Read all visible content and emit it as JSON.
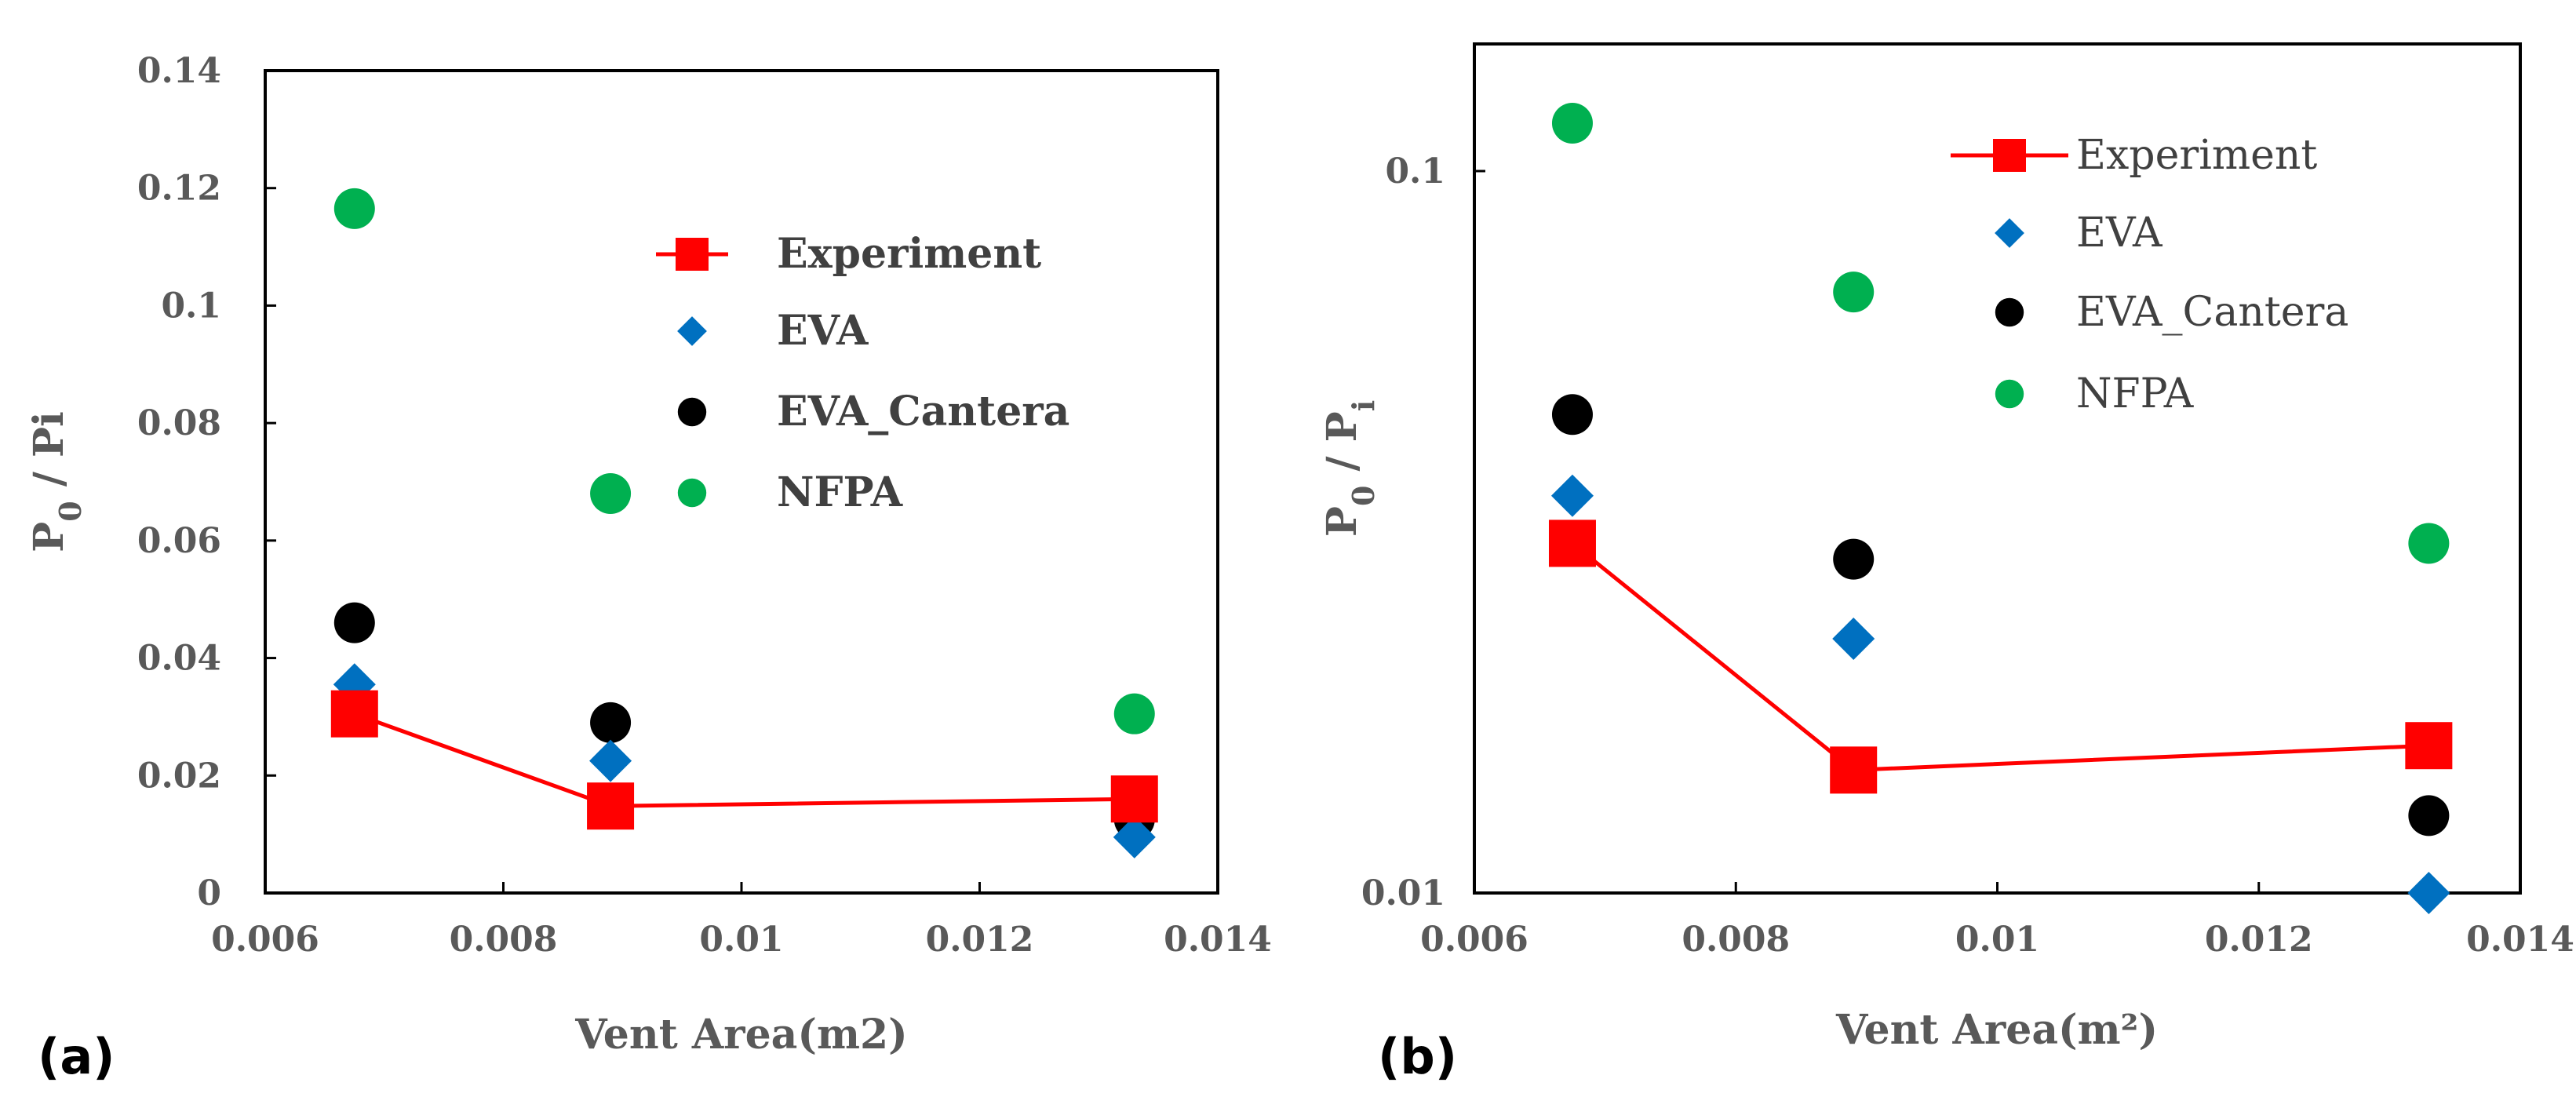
{
  "colors": {
    "experiment": "#ff0000",
    "eva": "#0070c0",
    "eva_cantera": "#000000",
    "nfpa": "#00b050",
    "axis": "#000000",
    "text": "#595959"
  },
  "chart_data": [
    {
      "type": "scatter",
      "panel_label": "(a)",
      "title": "",
      "xlabel": "Vent Area(m2)",
      "ylabel": "P0 / Pi",
      "ylabel_main": "P",
      "ylabel_sub": "0",
      "ylabel_rest": " / Pi",
      "ylabel_sub2": "",
      "xlim": [
        0.006,
        0.014
      ],
      "ylim": [
        0,
        0.14
      ],
      "yscale": "linear",
      "xticks": [
        0.006,
        0.008,
        0.01,
        0.012,
        0.014
      ],
      "xtick_labels": [
        "0.006",
        "0.008",
        "0.01",
        "0.012",
        "0.014"
      ],
      "yticks": [
        0,
        0.02,
        0.04,
        0.06,
        0.08,
        0.1,
        0.12,
        0.14
      ],
      "ytick_labels": [
        "0",
        "0.02",
        "0.04",
        "0.06",
        "0.08",
        "0.1",
        "0.12",
        "0.14"
      ],
      "grid": false,
      "legend_position": "upper-right",
      "series": [
        {
          "name": "Experiment",
          "key": "experiment",
          "marker": "square",
          "line": true,
          "x": [
            0.00675,
            0.0089,
            0.0133
          ],
          "y": [
            0.0305,
            0.0148,
            0.016
          ]
        },
        {
          "name": "EVA",
          "key": "eva",
          "marker": "diamond",
          "line": false,
          "x": [
            0.00675,
            0.0089,
            0.0133
          ],
          "y": [
            0.0355,
            0.0225,
            0.0095
          ]
        },
        {
          "name": "EVA_Cantera",
          "key": "eva_cantera",
          "marker": "circle",
          "line": false,
          "x": [
            0.00675,
            0.0089,
            0.0133
          ],
          "y": [
            0.046,
            0.029,
            0.0125
          ]
        },
        {
          "name": "NFPA",
          "key": "nfpa",
          "marker": "circle",
          "line": false,
          "x": [
            0.00675,
            0.0089,
            0.0133
          ],
          "y": [
            0.1165,
            0.068,
            0.0305
          ]
        }
      ]
    },
    {
      "type": "scatter",
      "panel_label": "(b)",
      "title": "",
      "xlabel": "Vent Area(m²)",
      "ylabel": "P0 / Pi",
      "ylabel_main": "P",
      "ylabel_sub": "0",
      "ylabel_rest": " / P",
      "ylabel_sub2": "i",
      "xlim": [
        0.006,
        0.014
      ],
      "ylim": [
        0.01,
        0.15
      ],
      "yscale": "log",
      "xticks": [
        0.006,
        0.008,
        0.01,
        0.012,
        0.014
      ],
      "xtick_labels": [
        "0.006",
        "0.008",
        "0.01",
        "0.012",
        "0.014"
      ],
      "yticks": [
        0.01,
        0.1
      ],
      "ytick_labels": [
        "0.01",
        "0.1"
      ],
      "grid": false,
      "legend_position": "upper-right",
      "series": [
        {
          "name": "Experiment",
          "key": "experiment",
          "marker": "square",
          "line": true,
          "x": [
            0.00675,
            0.0089,
            0.0133
          ],
          "y": [
            0.0305,
            0.0148,
            0.016
          ]
        },
        {
          "name": "EVA",
          "key": "eva",
          "marker": "diamond",
          "line": false,
          "x": [
            0.00675,
            0.0089,
            0.0133
          ],
          "y": [
            0.0355,
            0.0225,
            0.01
          ]
        },
        {
          "name": "EVA_Cantera",
          "key": "eva_cantera",
          "marker": "circle",
          "line": false,
          "x": [
            0.00675,
            0.0089,
            0.0133
          ],
          "y": [
            0.046,
            0.029,
            0.0128
          ]
        },
        {
          "name": "NFPA",
          "key": "nfpa",
          "marker": "circle",
          "line": false,
          "x": [
            0.00675,
            0.0089,
            0.0133
          ],
          "y": [
            0.1165,
            0.068,
            0.0305
          ]
        }
      ]
    }
  ]
}
